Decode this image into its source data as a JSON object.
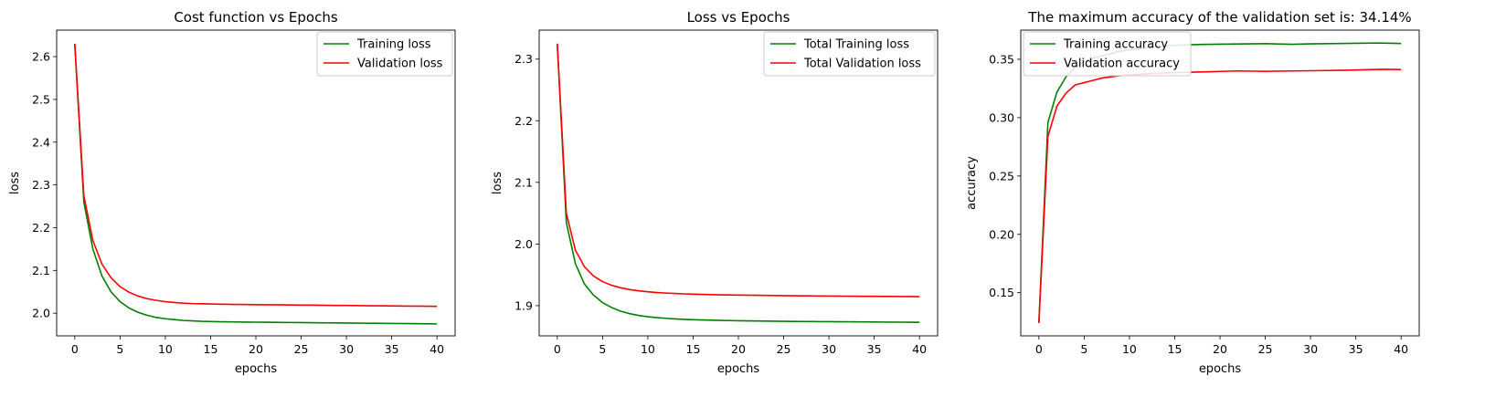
{
  "chart_data": [
    {
      "type": "line",
      "title": "Cost function vs Epochs",
      "xlabel": "epochs",
      "ylabel": "loss",
      "xlim": [
        -2,
        42
      ],
      "ylim": [
        1.947,
        2.662
      ],
      "xticks": [
        0,
        5,
        10,
        15,
        20,
        25,
        30,
        35,
        40
      ],
      "xtick_labels": [
        "0",
        "5",
        "10",
        "15",
        "20",
        "25",
        "30",
        "35",
        "40"
      ],
      "yticks": [
        2.0,
        2.1,
        2.2,
        2.3,
        2.4,
        2.5,
        2.6
      ],
      "ytick_labels": [
        "2.0",
        "2.1",
        "2.2",
        "2.3",
        "2.4",
        "2.5",
        "2.6"
      ],
      "grid": false,
      "legend_position": "upper right",
      "x": [
        0,
        1,
        2,
        3,
        4,
        5,
        6,
        7,
        8,
        9,
        10,
        11,
        12,
        13,
        14,
        15,
        16,
        17,
        18,
        19,
        20,
        21,
        22,
        23,
        24,
        25,
        26,
        27,
        28,
        29,
        30,
        31,
        32,
        33,
        34,
        35,
        36,
        37,
        38,
        39,
        40
      ],
      "series": [
        {
          "name": "Training loss",
          "color": "#008000",
          "values": [
            2.63,
            2.26,
            2.15,
            2.087,
            2.05,
            2.027,
            2.012,
            2.002,
            1.995,
            1.99,
            1.987,
            1.985,
            1.983,
            1.982,
            1.981,
            1.9805,
            1.98,
            1.9797,
            1.9794,
            1.9792,
            1.979,
            1.9788,
            1.9786,
            1.9784,
            1.9782,
            1.978,
            1.9778,
            1.9776,
            1.9774,
            1.9772,
            1.977,
            1.9768,
            1.9766,
            1.9764,
            1.9762,
            1.976,
            1.9758,
            1.9756,
            1.9754,
            1.9752,
            1.975
          ]
        },
        {
          "name": "Validation loss",
          "color": "#ff0000",
          "values": [
            2.63,
            2.275,
            2.17,
            2.115,
            2.083,
            2.062,
            2.049,
            2.04,
            2.034,
            2.03,
            2.027,
            2.025,
            2.0235,
            2.0225,
            2.022,
            2.0215,
            2.021,
            2.0207,
            2.0204,
            2.0202,
            2.02,
            2.0198,
            2.0196,
            2.0194,
            2.0192,
            2.019,
            2.0188,
            2.0186,
            2.0184,
            2.0182,
            2.018,
            2.0178,
            2.0176,
            2.0174,
            2.0172,
            2.017,
            2.0168,
            2.0166,
            2.0164,
            2.0162,
            2.016
          ]
        }
      ]
    },
    {
      "type": "line",
      "title": "Loss vs Epochs",
      "xlabel": "epochs",
      "ylabel": "loss",
      "xlim": [
        -2,
        42
      ],
      "ylim": [
        1.851,
        2.347
      ],
      "xticks": [
        0,
        5,
        10,
        15,
        20,
        25,
        30,
        35,
        40
      ],
      "xtick_labels": [
        "0",
        "5",
        "10",
        "15",
        "20",
        "25",
        "30",
        "35",
        "40"
      ],
      "yticks": [
        1.9,
        2.0,
        2.1,
        2.2,
        2.3
      ],
      "ytick_labels": [
        "1.9",
        "2.0",
        "2.1",
        "2.2",
        "2.3"
      ],
      "grid": false,
      "legend_position": "upper right",
      "x": [
        0,
        1,
        2,
        3,
        4,
        5,
        6,
        7,
        8,
        9,
        10,
        11,
        12,
        13,
        14,
        15,
        16,
        17,
        18,
        19,
        20,
        21,
        22,
        23,
        24,
        25,
        26,
        27,
        28,
        29,
        30,
        31,
        32,
        33,
        34,
        35,
        36,
        37,
        38,
        39,
        40
      ],
      "series": [
        {
          "name": "Total Training loss",
          "color": "#008000",
          "values": [
            2.325,
            2.035,
            1.968,
            1.935,
            1.917,
            1.905,
            1.897,
            1.891,
            1.887,
            1.884,
            1.882,
            1.8805,
            1.8795,
            1.8785,
            1.8778,
            1.8772,
            1.8768,
            1.8764,
            1.8761,
            1.8758,
            1.8756,
            1.8754,
            1.8752,
            1.875,
            1.8748,
            1.8746,
            1.8744,
            1.8743,
            1.8742,
            1.8741,
            1.874,
            1.8739,
            1.8738,
            1.8737,
            1.8736,
            1.8735,
            1.8734,
            1.8733,
            1.8732,
            1.8731,
            1.873
          ]
        },
        {
          "name": "Total Validation loss",
          "color": "#ff0000",
          "values": [
            2.325,
            2.05,
            1.99,
            1.963,
            1.948,
            1.939,
            1.933,
            1.929,
            1.926,
            1.924,
            1.9225,
            1.9213,
            1.9204,
            1.9197,
            1.9191,
            1.9186,
            1.9182,
            1.9179,
            1.9176,
            1.9174,
            1.9172,
            1.917,
            1.9168,
            1.9166,
            1.9164,
            1.9162,
            1.916,
            1.9159,
            1.9158,
            1.9157,
            1.9156,
            1.9155,
            1.9154,
            1.9153,
            1.9152,
            1.9151,
            1.915,
            1.9149,
            1.9148,
            1.9147,
            1.9146
          ]
        }
      ]
    },
    {
      "type": "line",
      "title": "The maximum accuracy of the validation set is: 34.14%",
      "xlabel": "epochs",
      "ylabel": "accuracy",
      "xlim": [
        -2,
        42
      ],
      "ylim": [
        0.113,
        0.375
      ],
      "xticks": [
        0,
        5,
        10,
        15,
        20,
        25,
        30,
        35,
        40
      ],
      "xtick_labels": [
        "0",
        "5",
        "10",
        "15",
        "20",
        "25",
        "30",
        "35",
        "40"
      ],
      "yticks": [
        0.15,
        0.2,
        0.25,
        0.3,
        0.35
      ],
      "ytick_labels": [
        "0.15",
        "0.20",
        "0.25",
        "0.30",
        "0.35"
      ],
      "grid": false,
      "legend_position": "upper left",
      "x": [
        0,
        1,
        2,
        3,
        4,
        5,
        6,
        7,
        8,
        9,
        10,
        11,
        12,
        13,
        14,
        15,
        16,
        17,
        18,
        19,
        20,
        21,
        22,
        23,
        24,
        25,
        26,
        27,
        28,
        29,
        30,
        31,
        32,
        33,
        34,
        35,
        36,
        37,
        38,
        39,
        40
      ],
      "series": [
        {
          "name": "Training accuracy",
          "color": "#008000",
          "values": [
            0.124,
            0.296,
            0.322,
            0.335,
            0.343,
            0.348,
            0.351,
            0.353,
            0.355,
            0.357,
            0.358,
            0.359,
            0.36,
            0.361,
            0.3615,
            0.362,
            0.3623,
            0.3625,
            0.3627,
            0.3628,
            0.3629,
            0.363,
            0.3631,
            0.3632,
            0.3633,
            0.3634,
            0.3632,
            0.363,
            0.3628,
            0.363,
            0.3632,
            0.3633,
            0.3634,
            0.3635,
            0.3636,
            0.3637,
            0.3638,
            0.3639,
            0.3639,
            0.3637,
            0.3635
          ]
        },
        {
          "name": "Validation accuracy",
          "color": "#ff0000",
          "values": [
            0.124,
            0.284,
            0.31,
            0.321,
            0.328,
            0.33,
            0.332,
            0.334,
            0.335,
            0.336,
            0.3365,
            0.337,
            0.3375,
            0.338,
            0.3383,
            0.3386,
            0.3388,
            0.339,
            0.3392,
            0.3394,
            0.3396,
            0.3398,
            0.34,
            0.3399,
            0.3398,
            0.3397,
            0.3398,
            0.3399,
            0.34,
            0.3401,
            0.3402,
            0.3403,
            0.3404,
            0.3405,
            0.3406,
            0.3408,
            0.341,
            0.3412,
            0.3414,
            0.3413,
            0.3412
          ]
        }
      ]
    }
  ]
}
